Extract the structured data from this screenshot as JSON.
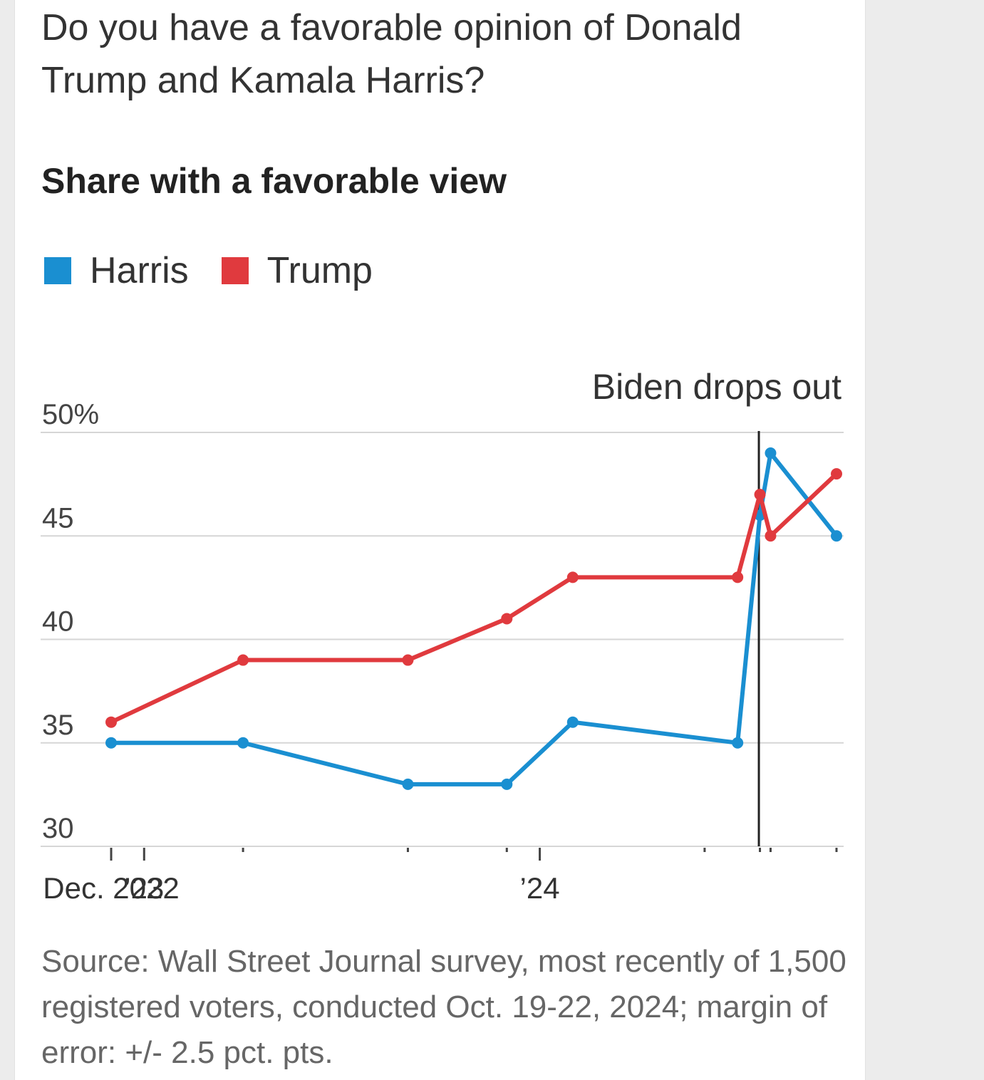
{
  "header": {
    "question": "Do you have a favorable opinion of Donald Trump and Kamala Harris?",
    "subtitle": "Share with a favorable view"
  },
  "legend": [
    {
      "label": "Harris",
      "color": "#1a8fd1"
    },
    {
      "label": "Trump",
      "color": "#e03a3e"
    }
  ],
  "chart_data": {
    "type": "line",
    "title": "Share with a favorable view",
    "xlabel": "",
    "ylabel": "",
    "x_tick_labels": [
      {
        "date": "2022-12",
        "label": "Dec. 2022"
      },
      {
        "date": "2023-01",
        "label": "’23"
      },
      {
        "date": "2024-01",
        "label": "’24"
      }
    ],
    "x_range": [
      "2022-12",
      "2024-10"
    ],
    "y_ticks": [
      30,
      35,
      40,
      45,
      50
    ],
    "y_tick_labels": [
      "30",
      "35",
      "40",
      "45",
      "50%"
    ],
    "ylim": [
      30,
      50
    ],
    "grid": "horizontal",
    "legend_position": "top-left",
    "x": [
      "2022-12",
      "2023-04",
      "2023-09",
      "2024-01",
      "2024-06",
      "2024-07",
      "2024-08",
      "2024-10"
    ],
    "series": [
      {
        "name": "Harris",
        "color": "#1a8fd1",
        "values": [
          35,
          35,
          33,
          33,
          36,
          35,
          46,
          49,
          45
        ],
        "x": [
          "2022-12",
          "2023-04",
          "2023-09",
          "2023-12",
          "2024-02",
          "2024-07",
          "2024-07-22",
          "2024-08",
          "2024-10"
        ]
      },
      {
        "name": "Trump",
        "color": "#e03a3e",
        "values": [
          36,
          39,
          39,
          41,
          43,
          43,
          47,
          45,
          48
        ],
        "x": [
          "2022-12",
          "2023-04",
          "2023-09",
          "2023-12",
          "2024-02",
          "2024-07",
          "2024-07-22",
          "2024-08",
          "2024-10"
        ]
      }
    ],
    "annotations": [
      {
        "text": "Biden drops out",
        "x": "2024-07-21"
      }
    ]
  },
  "source": "Source: Wall Street Journal survey, most recently of 1,500 registered voters, conducted Oct. 19-22, 2024; margin of error: +/- 2.5 pct. pts."
}
